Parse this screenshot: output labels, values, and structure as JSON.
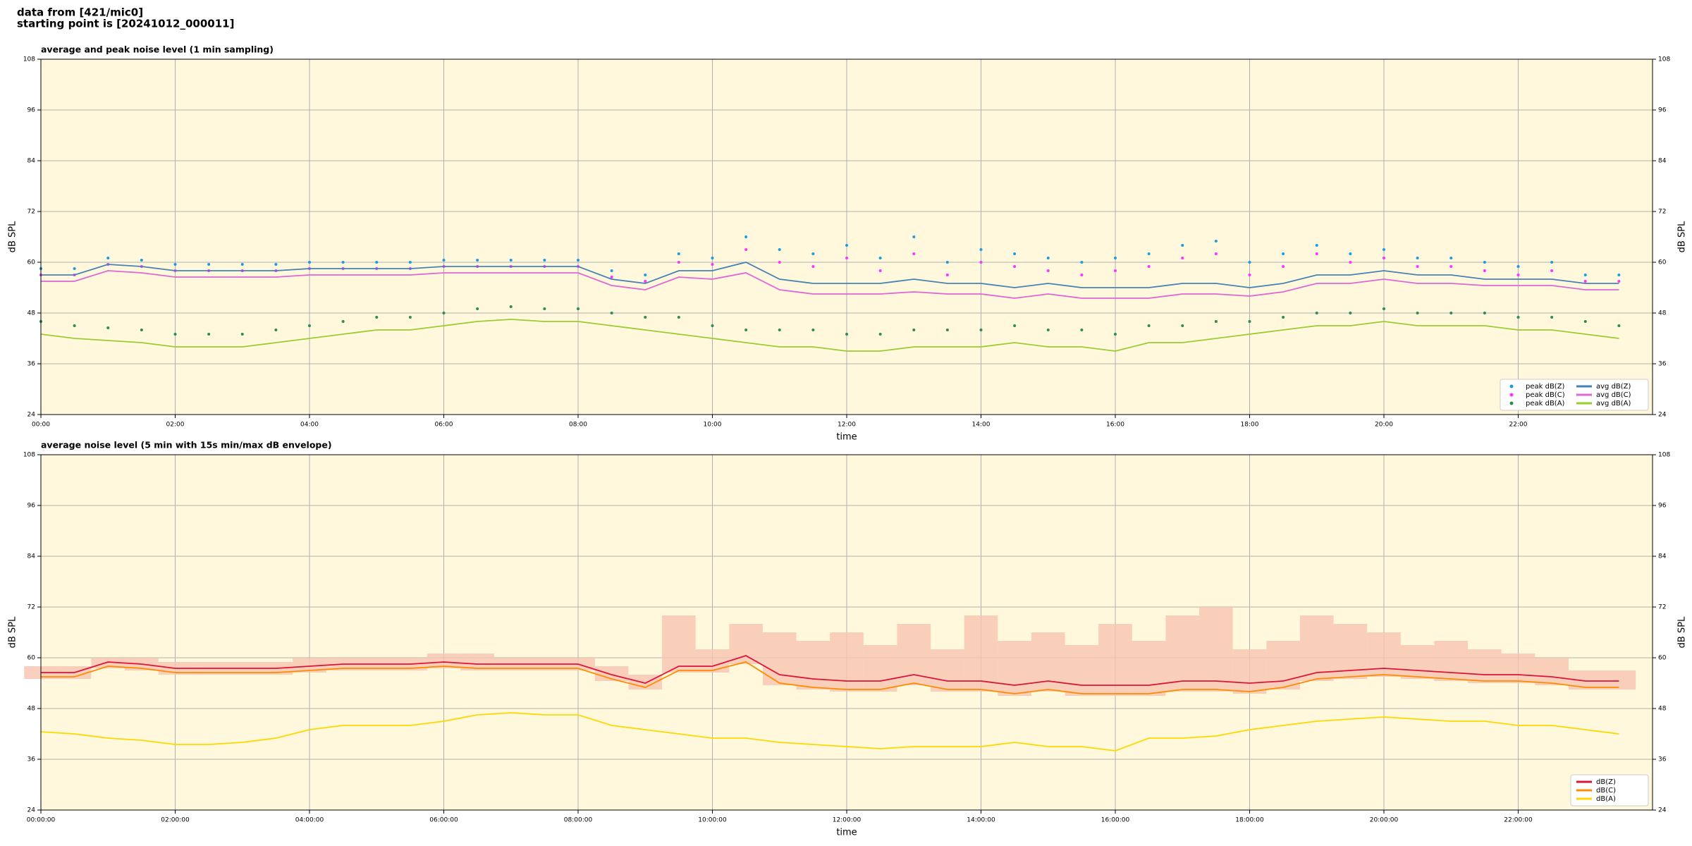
{
  "header": {
    "lines": [
      "data from [421/mic0]",
      "starting point is [20241012_000011]"
    ]
  },
  "chart_data": [
    {
      "type": "line",
      "title": "average and peak noise level (1 min sampling)",
      "xlabel": "time",
      "ylabel": "dB SPL",
      "xlim": [
        0,
        24
      ],
      "ylim": [
        24,
        108
      ],
      "yticks": [
        24,
        36,
        48,
        60,
        72,
        84,
        96,
        108
      ],
      "grid": true,
      "legend": "lower right",
      "legend_columns": 2,
      "background": "#fff8dc",
      "xticks": [
        {
          "value": 0,
          "label": "00:00"
        },
        {
          "value": 2,
          "label": "02:00"
        },
        {
          "value": 4,
          "label": "04:00"
        },
        {
          "value": 6,
          "label": "06:00"
        },
        {
          "value": 8,
          "label": "08:00"
        },
        {
          "value": 10,
          "label": "10:00"
        },
        {
          "value": 12,
          "label": "12:00"
        },
        {
          "value": 14,
          "label": "14:00"
        },
        {
          "value": 16,
          "label": "16:00"
        },
        {
          "value": 18,
          "label": "18:00"
        },
        {
          "value": 20,
          "label": "20:00"
        },
        {
          "value": 22,
          "label": "22:00"
        }
      ],
      "x": [
        0,
        0.5,
        1,
        1.5,
        2,
        2.5,
        3,
        3.5,
        4,
        4.5,
        5,
        5.5,
        6,
        6.5,
        7,
        7.5,
        8,
        8.5,
        9,
        9.5,
        10,
        10.5,
        11,
        11.5,
        12,
        12.5,
        13,
        13.5,
        14,
        14.5,
        15,
        15.5,
        16,
        16.5,
        17,
        17.5,
        18,
        18.5,
        19,
        19.5,
        20,
        20.5,
        21,
        21.5,
        22,
        22.5,
        23,
        23.5
      ],
      "series": [
        {
          "name": "peak dB(Z)",
          "style": "scatter",
          "color": "#1f9be0",
          "values": [
            58.5,
            58.5,
            61,
            60.5,
            59.5,
            59.5,
            59.5,
            59.5,
            60,
            60,
            60,
            60,
            60.5,
            60.5,
            60.5,
            60.5,
            60.5,
            58,
            57,
            62,
            61,
            66,
            63,
            62,
            64,
            61,
            66,
            60,
            63,
            62,
            61,
            60,
            61,
            62,
            64,
            65,
            60,
            62,
            64,
            62,
            63,
            61,
            61,
            60,
            59,
            60,
            57,
            57
          ]
        },
        {
          "name": "peak dB(C)",
          "style": "scatter",
          "color": "#ff33ff",
          "values": [
            57,
            57,
            59.5,
            59,
            58,
            58,
            58,
            58,
            58.5,
            58.5,
            58.5,
            58.5,
            59,
            59,
            59,
            59,
            59,
            56.5,
            55.5,
            60,
            59.5,
            63,
            60,
            59,
            61,
            58,
            62,
            57,
            60,
            59,
            58,
            57,
            58,
            59,
            61,
            62,
            57,
            59,
            62,
            60,
            61,
            59,
            59,
            58,
            57,
            58,
            55.5,
            55.5
          ]
        },
        {
          "name": "peak dB(A)",
          "style": "scatter",
          "color": "#2e8b57",
          "values": [
            46,
            45,
            44.5,
            44,
            43,
            43,
            43,
            44,
            45,
            46,
            47,
            47,
            48,
            49,
            49.5,
            49,
            49,
            48,
            47,
            47,
            45,
            44,
            44,
            44,
            43,
            43,
            44,
            44,
            44,
            45,
            44,
            44,
            43,
            45,
            45,
            46,
            46,
            47,
            48,
            48,
            49,
            48,
            48,
            48,
            47,
            47,
            46,
            45
          ]
        },
        {
          "name": "avg dB(Z)",
          "style": "line",
          "color": "#4682b4",
          "values": [
            57,
            57,
            59.5,
            59,
            58,
            58,
            58,
            58,
            58.5,
            58.5,
            58.5,
            58.5,
            59,
            59,
            59,
            59,
            59,
            56,
            55,
            58,
            58,
            60,
            56,
            55,
            55,
            55,
            56,
            55,
            55,
            54,
            55,
            54,
            54,
            54,
            55,
            55,
            54,
            55,
            57,
            57,
            58,
            57,
            57,
            56,
            56,
            56,
            55,
            55
          ]
        },
        {
          "name": "avg dB(C)",
          "style": "line",
          "color": "#e066d4",
          "values": [
            55.5,
            55.5,
            58,
            57.5,
            56.5,
            56.5,
            56.5,
            56.5,
            57,
            57,
            57,
            57,
            57.5,
            57.5,
            57.5,
            57.5,
            57.5,
            54.5,
            53.5,
            56.5,
            56,
            57.5,
            53.5,
            52.5,
            52.5,
            52.5,
            53,
            52.5,
            52.5,
            51.5,
            52.5,
            51.5,
            51.5,
            51.5,
            52.5,
            52.5,
            52,
            53,
            55,
            55,
            56,
            55,
            55,
            54.5,
            54.5,
            54.5,
            53.5,
            53.5
          ]
        },
        {
          "name": "avg dB(A)",
          "style": "line",
          "color": "#9acd32",
          "values": [
            43,
            42,
            41.5,
            41,
            40,
            40,
            40,
            41,
            42,
            43,
            44,
            44,
            45,
            46,
            46.5,
            46,
            46,
            45,
            44,
            43,
            42,
            41,
            40,
            40,
            39,
            39,
            40,
            40,
            40,
            41,
            40,
            40,
            39,
            41,
            41,
            42,
            43,
            44,
            45,
            45,
            46,
            45,
            45,
            45,
            44,
            44,
            43,
            42
          ]
        }
      ]
    },
    {
      "type": "line",
      "title": "average noise level (5 min with 15s min/max dB envelope)",
      "xlabel": "time",
      "ylabel": "dB SPL",
      "xlim": [
        0,
        24
      ],
      "ylim": [
        24,
        108
      ],
      "yticks": [
        24,
        36,
        48,
        60,
        72,
        84,
        96,
        108
      ],
      "grid": true,
      "legend": "lower right",
      "legend_columns": 1,
      "background": "#fff8dc",
      "xticks": [
        {
          "value": 0,
          "label": "00:00:00"
        },
        {
          "value": 2,
          "label": "02:00:00"
        },
        {
          "value": 4,
          "label": "04:00:00"
        },
        {
          "value": 6,
          "label": "06:00:00"
        },
        {
          "value": 8,
          "label": "08:00:00"
        },
        {
          "value": 10,
          "label": "10:00:00"
        },
        {
          "value": 12,
          "label": "12:00:00"
        },
        {
          "value": 14,
          "label": "14:00:00"
        },
        {
          "value": 16,
          "label": "16:00:00"
        },
        {
          "value": 18,
          "label": "18:00:00"
        },
        {
          "value": 20,
          "label": "20:00:00"
        },
        {
          "value": 22,
          "label": "22:00:00"
        }
      ],
      "x": [
        0,
        0.5,
        1,
        1.5,
        2,
        2.5,
        3,
        3.5,
        4,
        4.5,
        5,
        5.5,
        6,
        6.5,
        7,
        7.5,
        8,
        8.5,
        9,
        9.5,
        10,
        10.5,
        11,
        11.5,
        12,
        12.5,
        13,
        13.5,
        14,
        14.5,
        15,
        15.5,
        16,
        16.5,
        17,
        17.5,
        18,
        18.5,
        19,
        19.5,
        20,
        20.5,
        21,
        21.5,
        22,
        22.5,
        23,
        23.5
      ],
      "band": {
        "color": "#f7c4b0",
        "lower": [
          55,
          55,
          57.5,
          57,
          56,
          56,
          56,
          56,
          56.5,
          57,
          57,
          57,
          57.5,
          57,
          57,
          57,
          57,
          54.5,
          52.5,
          56.5,
          56.5,
          58.5,
          53.5,
          52.5,
          52,
          52,
          53.5,
          52,
          52,
          51,
          52,
          51,
          51,
          51,
          52,
          52,
          51.5,
          52.5,
          54.5,
          55,
          55.5,
          55,
          54.5,
          54,
          54,
          53.5,
          52.5,
          52.5
        ],
        "upper": [
          58,
          58,
          60,
          60,
          59,
          59,
          59,
          59,
          60,
          60,
          60,
          60,
          61,
          61,
          60,
          60,
          60,
          58,
          56,
          70,
          62,
          68,
          66,
          64,
          66,
          63,
          68,
          62,
          70,
          64,
          66,
          63,
          68,
          64,
          70,
          72,
          62,
          64,
          70,
          68,
          66,
          63,
          64,
          62,
          61,
          60,
          57,
          57
        ]
      },
      "series": [
        {
          "name": "dB(Z)",
          "style": "line",
          "color": "#dc143c",
          "values": [
            56.5,
            56.5,
            59,
            58.5,
            57.5,
            57.5,
            57.5,
            57.5,
            58,
            58.5,
            58.5,
            58.5,
            59,
            58.5,
            58.5,
            58.5,
            58.5,
            56,
            54,
            58,
            58,
            60.5,
            56,
            55,
            54.5,
            54.5,
            56,
            54.5,
            54.5,
            53.5,
            54.5,
            53.5,
            53.5,
            53.5,
            54.5,
            54.5,
            54,
            54.5,
            56.5,
            57,
            57.5,
            57,
            56.5,
            56,
            56,
            55.5,
            54.5,
            54.5
          ]
        },
        {
          "name": "dB(C)",
          "style": "line",
          "color": "#ff8c00",
          "values": [
            55.5,
            55.5,
            58,
            57.5,
            56.5,
            56.5,
            56.5,
            56.5,
            57,
            57.5,
            57.5,
            57.5,
            58,
            57.5,
            57.5,
            57.5,
            57.5,
            55,
            53,
            57,
            57,
            59,
            54,
            53,
            52.5,
            52.5,
            54,
            52.5,
            52.5,
            51.5,
            52.5,
            51.5,
            51.5,
            51.5,
            52.5,
            52.5,
            52,
            53,
            55,
            55.5,
            56,
            55.5,
            55,
            54.5,
            54.5,
            54,
            53,
            53
          ]
        },
        {
          "name": "dB(A)",
          "style": "line",
          "color": "#ffd700",
          "values": [
            42.5,
            42,
            41,
            40.5,
            39.5,
            39.5,
            40,
            41,
            43,
            44,
            44,
            44,
            45,
            46.5,
            47,
            46.5,
            46.5,
            44,
            43,
            42,
            41,
            41,
            40,
            39.5,
            39,
            38.5,
            39,
            39,
            39,
            40,
            39,
            39,
            38,
            41,
            41,
            41.5,
            43,
            44,
            45,
            45.5,
            46,
            45.5,
            45,
            45,
            44,
            44,
            43,
            42
          ]
        }
      ]
    }
  ]
}
